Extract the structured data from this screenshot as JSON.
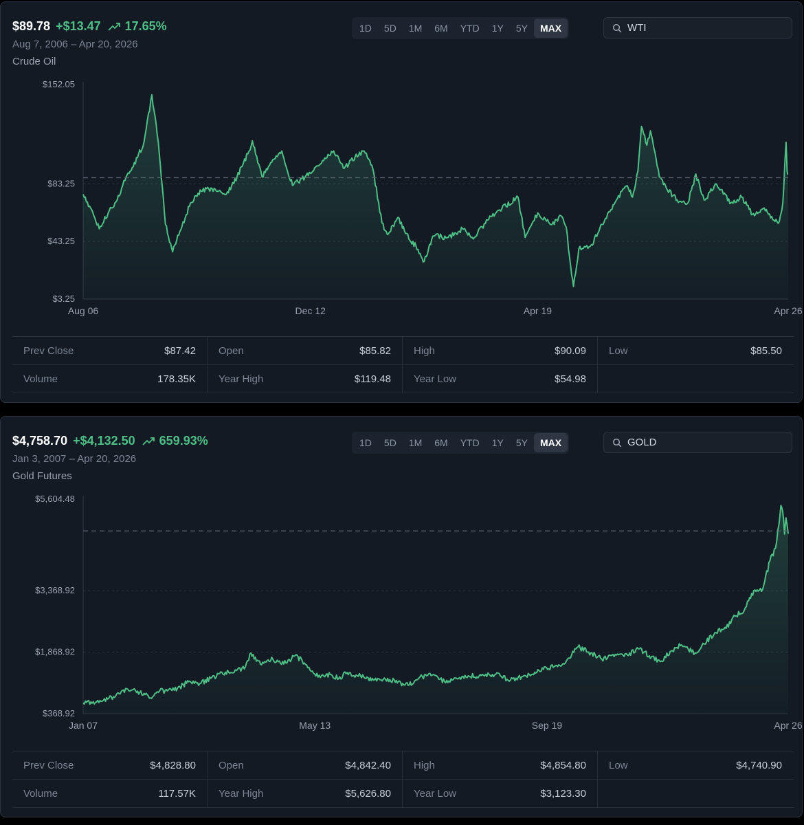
{
  "panels": [
    {
      "price": "$89.78",
      "change": "+$13.47",
      "change_pct": "17.65%",
      "date_range": "Aug 7, 2006 – Apr 20, 2026",
      "name": "Crude Oil",
      "periods": [
        "1D",
        "5D",
        "1M",
        "6M",
        "YTD",
        "1Y",
        "5Y",
        "MAX"
      ],
      "active_period": "MAX",
      "search_value": "WTI",
      "stats": [
        [
          {
            "label": "Prev Close",
            "value": "$87.42"
          },
          {
            "label": "Open",
            "value": "$85.82"
          },
          {
            "label": "High",
            "value": "$90.09"
          },
          {
            "label": "Low",
            "value": "$85.50"
          }
        ],
        [
          {
            "label": "Volume",
            "value": "178.35K"
          },
          {
            "label": "Year High",
            "value": "$119.48"
          },
          {
            "label": "Year Low",
            "value": "$54.98"
          }
        ]
      ]
    },
    {
      "price": "$4,758.70",
      "change": "+$4,132.50",
      "change_pct": "659.93%",
      "date_range": "Jan 3, 2007 – Apr 20, 2026",
      "name": "Gold Futures",
      "periods": [
        "1D",
        "5D",
        "1M",
        "6M",
        "YTD",
        "1Y",
        "5Y",
        "MAX"
      ],
      "active_period": "MAX",
      "search_value": "GOLD",
      "stats": [
        [
          {
            "label": "Prev Close",
            "value": "$4,828.80"
          },
          {
            "label": "Open",
            "value": "$4,842.40"
          },
          {
            "label": "High",
            "value": "$4,854.80"
          },
          {
            "label": "Low",
            "value": "$4,740.90"
          }
        ],
        [
          {
            "label": "Volume",
            "value": "117.57K"
          },
          {
            "label": "Year High",
            "value": "$5,626.80"
          },
          {
            "label": "Year Low",
            "value": "$3,123.30"
          }
        ]
      ]
    }
  ],
  "colors": {
    "line": "#4fbf86",
    "positive": "#4fbf86",
    "background": "#131a24",
    "grid": "#27303d",
    "reference": "#5b6472"
  },
  "icons": {
    "trend": "trend-up-icon",
    "search": "search-icon"
  },
  "chart_data": [
    {
      "type": "area",
      "series": [
        {
          "values": [
            [
              2006.6,
              76.0
            ],
            [
              2006.9,
              61.0
            ],
            [
              2007.05,
              52.0
            ],
            [
              2007.3,
              63.0
            ],
            [
              2007.55,
              72.0
            ],
            [
              2007.8,
              88.0
            ],
            [
              2008.0,
              95.0
            ],
            [
              2008.3,
              112.0
            ],
            [
              2008.52,
              145.0
            ],
            [
              2008.7,
              112.0
            ],
            [
              2008.9,
              55.0
            ],
            [
              2009.1,
              36.0
            ],
            [
              2009.3,
              50.0
            ],
            [
              2009.6,
              70.0
            ],
            [
              2009.9,
              78.0
            ],
            [
              2010.2,
              80.0
            ],
            [
              2010.6,
              76.0
            ],
            [
              2010.9,
              88.0
            ],
            [
              2011.2,
              104.0
            ],
            [
              2011.33,
              113.0
            ],
            [
              2011.6,
              88.0
            ],
            [
              2011.9,
              100.0
            ],
            [
              2012.15,
              106.0
            ],
            [
              2012.45,
              82.0
            ],
            [
              2012.8,
              88.0
            ],
            [
              2013.1,
              95.0
            ],
            [
              2013.6,
              106.0
            ],
            [
              2013.9,
              94.0
            ],
            [
              2014.2,
              102.0
            ],
            [
              2014.45,
              106.0
            ],
            [
              2014.7,
              93.0
            ],
            [
              2014.95,
              56.0
            ],
            [
              2015.1,
              48.0
            ],
            [
              2015.4,
              60.0
            ],
            [
              2015.7,
              45.0
            ],
            [
              2015.9,
              40.0
            ],
            [
              2016.1,
              29.0
            ],
            [
              2016.4,
              47.0
            ],
            [
              2016.8,
              46.0
            ],
            [
              2017.2,
              52.0
            ],
            [
              2017.5,
              45.0
            ],
            [
              2017.9,
              58.0
            ],
            [
              2018.3,
              66.0
            ],
            [
              2018.75,
              74.0
            ],
            [
              2018.95,
              46.0
            ],
            [
              2019.3,
              63.0
            ],
            [
              2019.7,
              55.0
            ],
            [
              2019.95,
              61.0
            ],
            [
              2020.1,
              53.0
            ],
            [
              2020.25,
              20.0
            ],
            [
              2020.3,
              12.0
            ],
            [
              2020.45,
              38.0
            ],
            [
              2020.8,
              41.0
            ],
            [
              2021.1,
              55.0
            ],
            [
              2021.5,
              72.0
            ],
            [
              2021.8,
              82.0
            ],
            [
              2021.95,
              74.0
            ],
            [
              2022.1,
              92.0
            ],
            [
              2022.2,
              123.0
            ],
            [
              2022.35,
              110.0
            ],
            [
              2022.45,
              120.0
            ],
            [
              2022.7,
              88.0
            ],
            [
              2022.9,
              80.0
            ],
            [
              2023.2,
              72.0
            ],
            [
              2023.5,
              70.0
            ],
            [
              2023.72,
              90.0
            ],
            [
              2023.95,
              72.0
            ],
            [
              2024.3,
              83.0
            ],
            [
              2024.7,
              70.0
            ],
            [
              2025.0,
              74.0
            ],
            [
              2025.3,
              62.0
            ],
            [
              2025.6,
              66.0
            ],
            [
              2025.9,
              58.0
            ],
            [
              2026.05,
              57.0
            ],
            [
              2026.15,
              70.0
            ],
            [
              2026.24,
              112.0
            ],
            [
              2026.27,
              92.0
            ],
            [
              2026.3,
              89.78
            ]
          ]
        }
      ],
      "x_ticks": [
        "Aug 06",
        "Dec 12",
        "Apr 19",
        "Apr 26"
      ],
      "x_tick_values": [
        2006.6,
        2012.95,
        2019.3,
        2026.3
      ],
      "y_ticks": [
        "$152.05",
        "$83.25",
        "$43.25",
        "$3.25"
      ],
      "y_tick_values": [
        152.05,
        83.25,
        43.25,
        3.25
      ],
      "xlim": [
        2006.6,
        2026.3
      ],
      "ylim": [
        3.25,
        152.05
      ],
      "reference_value": 87.42,
      "grid": "horizontal dashed"
    },
    {
      "type": "area",
      "series": [
        {
          "values": [
            [
              2007.01,
              630.0
            ],
            [
              2007.5,
              670.0
            ],
            [
              2007.9,
              800.0
            ],
            [
              2008.2,
              980.0
            ],
            [
              2008.5,
              920.0
            ],
            [
              2008.85,
              750.0
            ],
            [
              2009.1,
              920.0
            ],
            [
              2009.5,
              940.0
            ],
            [
              2009.9,
              1150.0
            ],
            [
              2010.2,
              1100.0
            ],
            [
              2010.5,
              1230.0
            ],
            [
              2010.9,
              1380.0
            ],
            [
              2011.2,
              1420.0
            ],
            [
              2011.45,
              1520.0
            ],
            [
              2011.6,
              1850.0
            ],
            [
              2011.75,
              1650.0
            ],
            [
              2011.95,
              1600.0
            ],
            [
              2012.2,
              1700.0
            ],
            [
              2012.5,
              1580.0
            ],
            [
              2012.8,
              1780.0
            ],
            [
              2013.0,
              1670.0
            ],
            [
              2013.25,
              1400.0
            ],
            [
              2013.5,
              1250.0
            ],
            [
              2013.8,
              1320.0
            ],
            [
              2014.0,
              1220.0
            ],
            [
              2014.2,
              1350.0
            ],
            [
              2014.6,
              1290.0
            ],
            [
              2014.95,
              1190.0
            ],
            [
              2015.4,
              1200.0
            ],
            [
              2015.9,
              1060.0
            ],
            [
              2016.2,
              1240.0
            ],
            [
              2016.5,
              1350.0
            ],
            [
              2016.9,
              1150.0
            ],
            [
              2017.4,
              1280.0
            ],
            [
              2017.9,
              1300.0
            ],
            [
              2018.3,
              1330.0
            ],
            [
              2018.7,
              1190.0
            ],
            [
              2019.1,
              1300.0
            ],
            [
              2019.6,
              1450.0
            ],
            [
              2019.9,
              1520.0
            ],
            [
              2020.2,
              1600.0
            ],
            [
              2020.55,
              2000.0
            ],
            [
              2020.9,
              1850.0
            ],
            [
              2021.2,
              1700.0
            ],
            [
              2021.6,
              1800.0
            ],
            [
              2021.9,
              1800.0
            ],
            [
              2022.2,
              1950.0
            ],
            [
              2022.5,
              1780.0
            ],
            [
              2022.8,
              1640.0
            ],
            [
              2023.1,
              1900.0
            ],
            [
              2023.35,
              2030.0
            ],
            [
              2023.75,
              1850.0
            ],
            [
              2024.0,
              2070.0
            ],
            [
              2024.3,
              2350.0
            ],
            [
              2024.6,
              2450.0
            ],
            [
              2024.85,
              2750.0
            ],
            [
              2025.1,
              2900.0
            ],
            [
              2025.3,
              3300.0
            ],
            [
              2025.6,
              3400.0
            ],
            [
              2025.8,
              4100.0
            ],
            [
              2025.95,
              4400.0
            ],
            [
              2026.05,
              5000.0
            ],
            [
              2026.1,
              5450.0
            ],
            [
              2026.15,
              5300.0
            ],
            [
              2026.2,
              4750.0
            ],
            [
              2026.24,
              5150.0
            ],
            [
              2026.3,
              4758.7
            ]
          ]
        }
      ],
      "x_ticks": [
        "Jan 07",
        "May 13",
        "Sep 19",
        "Apr 26"
      ],
      "x_tick_values": [
        2007.01,
        2013.35,
        2019.7,
        2026.3
      ],
      "y_ticks": [
        "$5,604.48",
        "$3,368.92",
        "$1,868.92",
        "$368.92"
      ],
      "y_tick_values": [
        5604.48,
        3368.92,
        1868.92,
        368.92
      ],
      "xlim": [
        2007.01,
        2026.3
      ],
      "ylim": [
        368.92,
        5604.48
      ],
      "reference_value": 4828.8,
      "grid": "horizontal dashed"
    }
  ]
}
